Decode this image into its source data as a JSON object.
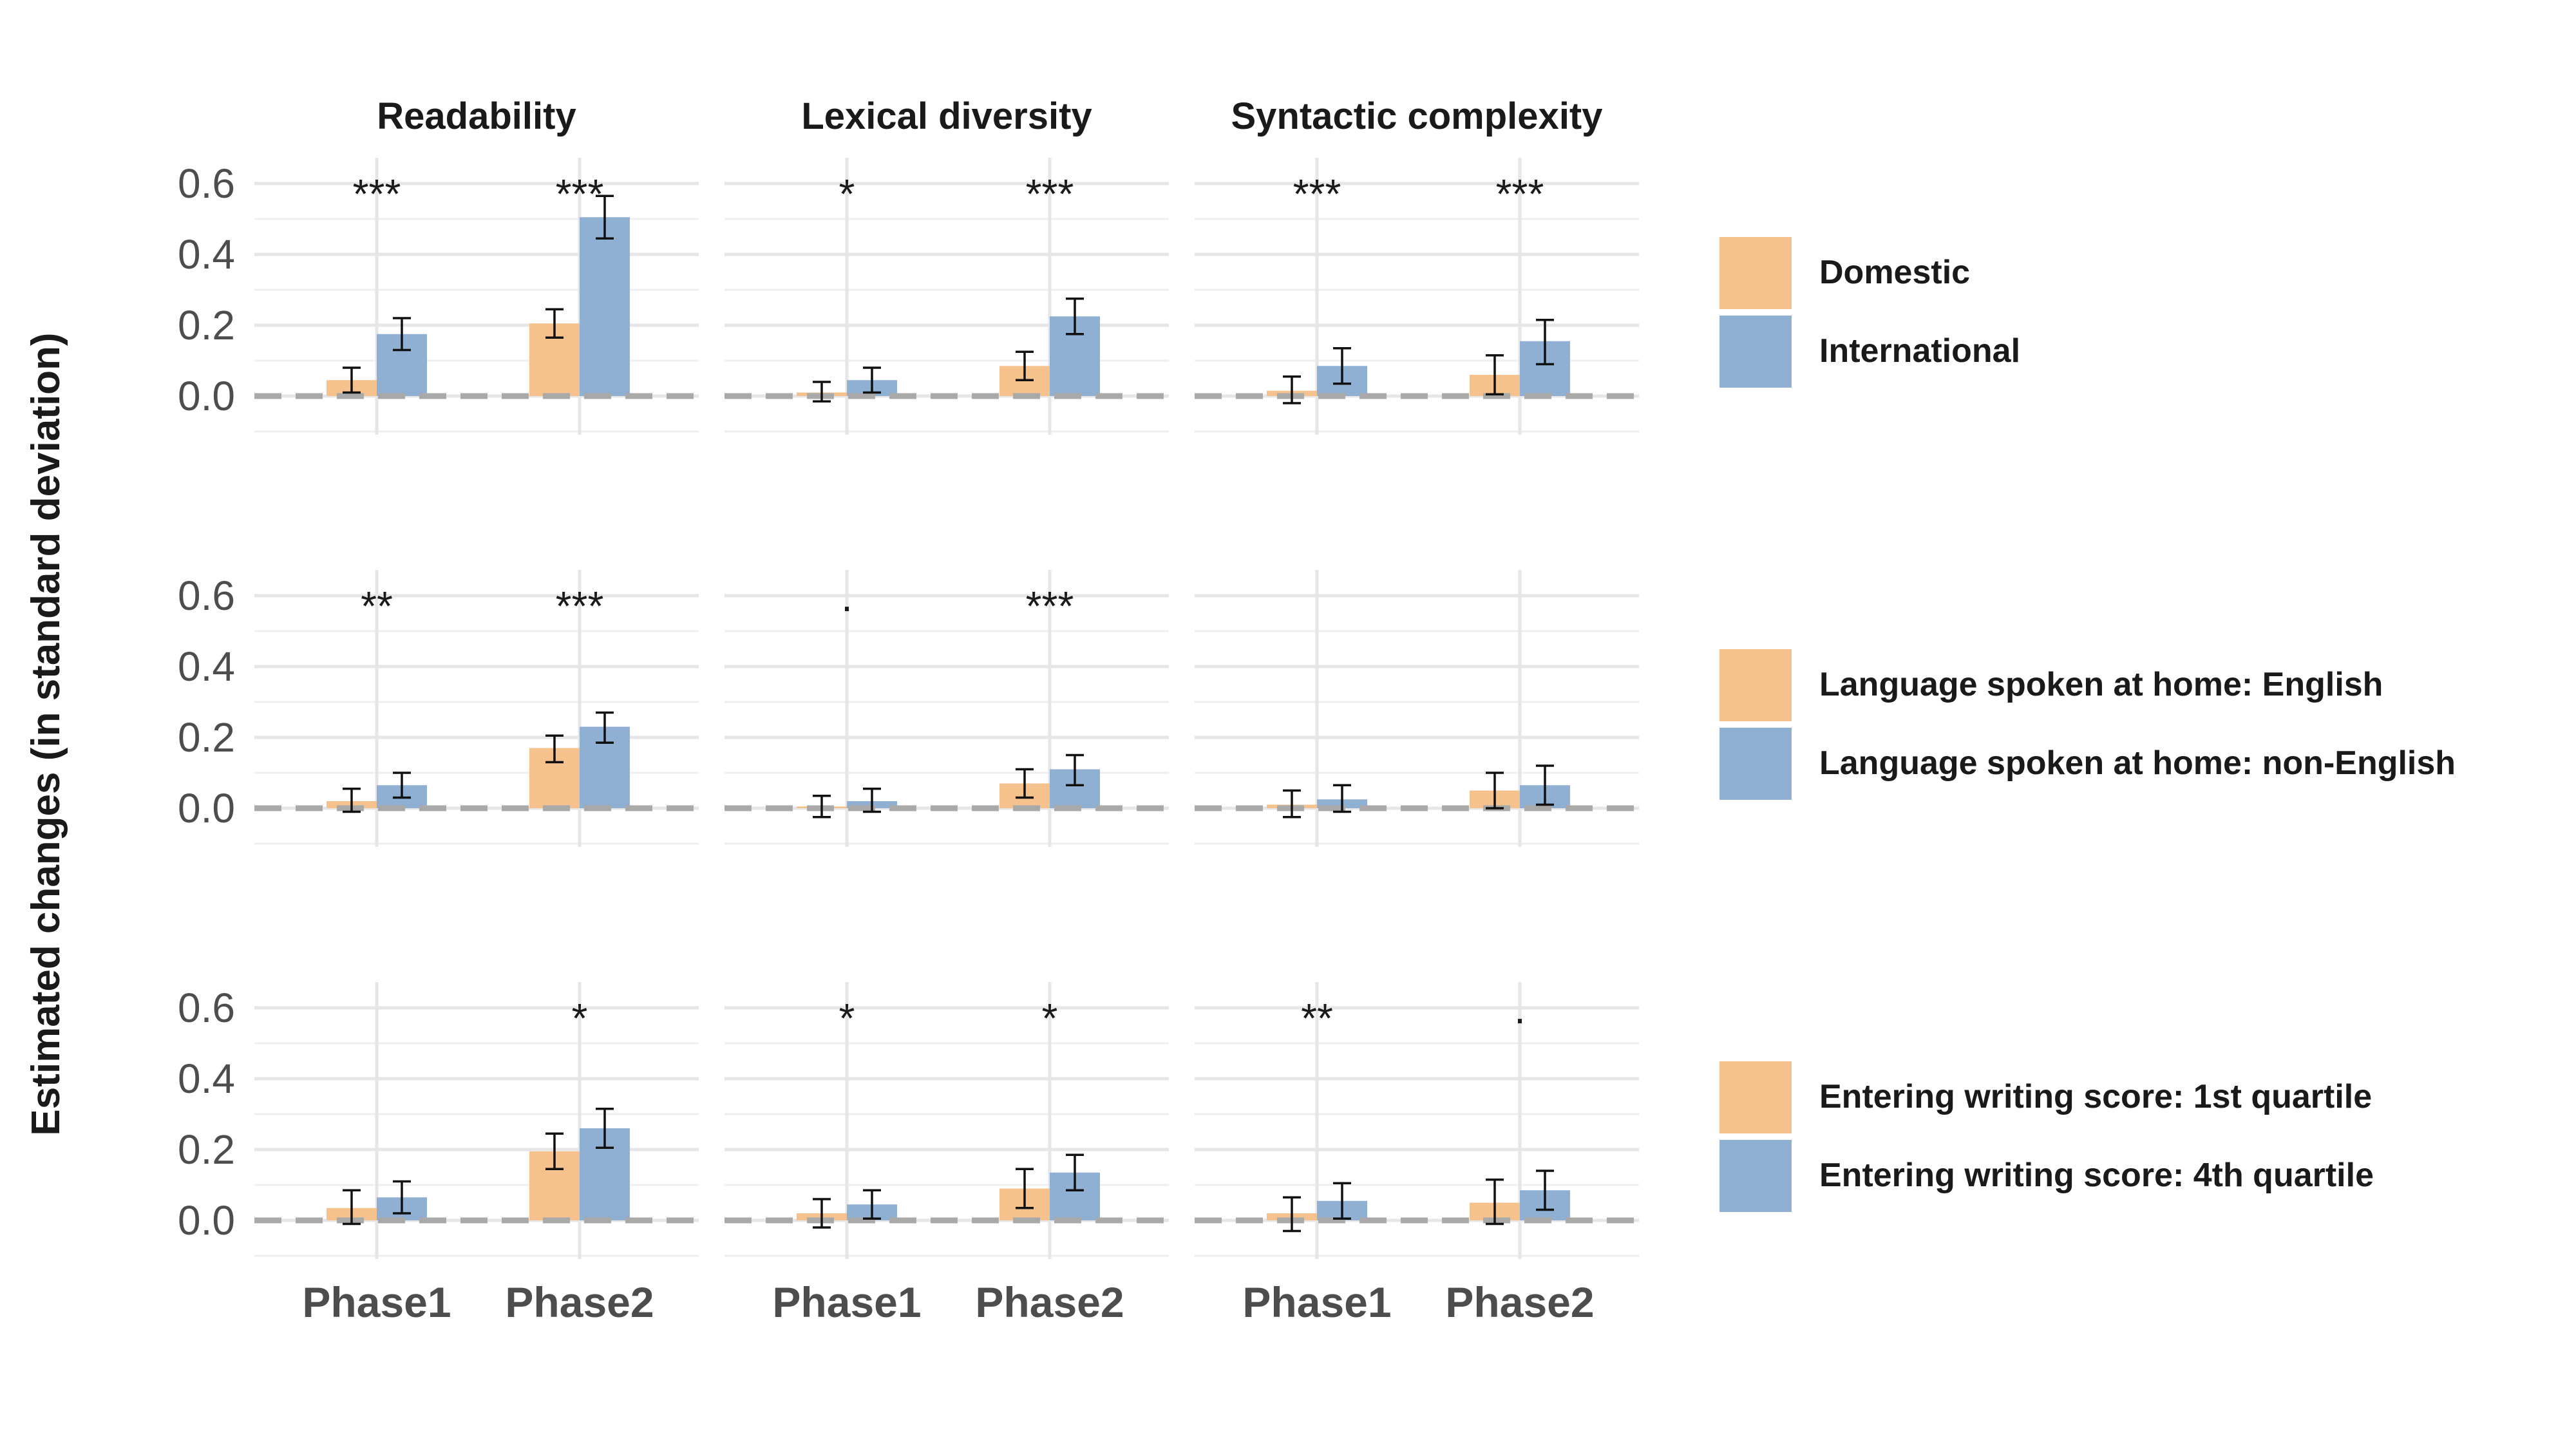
{
  "chart_data": {
    "type": "bar",
    "ylabel": "Estimated changes (in standard deviation)",
    "xlabel": "",
    "columns": [
      "Readability",
      "Lexical diversity",
      "Syntactic complexity"
    ],
    "categories": [
      "Phase1",
      "Phase2"
    ],
    "y_ticks": [
      "0.0",
      "0.2",
      "0.4",
      "0.6"
    ],
    "y_tick_values": [
      0,
      0.2,
      0.4,
      0.6
    ],
    "ylim": [
      -0.1,
      0.7
    ],
    "reference_line": 0,
    "rows": [
      {
        "series": [
          {
            "name": "Domestic",
            "color": "#F5C18D"
          },
          {
            "name": "International",
            "color": "#8FAFD3"
          }
        ],
        "panels": [
          {
            "values": [
              [
                0.045,
                0.175
              ],
              [
                0.205,
                0.505
              ]
            ],
            "err": [
              [
                [
                  0.01,
                  0.08
                ],
                [
                  0.13,
                  0.22
                ]
              ],
              [
                [
                  0.165,
                  0.245
                ],
                [
                  0.445,
                  0.565
                ]
              ]
            ],
            "sig": [
              "***",
              "***"
            ]
          },
          {
            "values": [
              [
                0.01,
                0.045
              ],
              [
                0.085,
                0.225
              ]
            ],
            "err": [
              [
                [
                  -0.015,
                  0.04
                ],
                [
                  0.01,
                  0.08
                ]
              ],
              [
                [
                  0.045,
                  0.125
                ],
                [
                  0.175,
                  0.275
                ]
              ]
            ],
            "sig": [
              "*",
              "***"
            ]
          },
          {
            "values": [
              [
                0.015,
                0.085
              ],
              [
                0.06,
                0.155
              ]
            ],
            "err": [
              [
                [
                  -0.02,
                  0.055
                ],
                [
                  0.035,
                  0.135
                ]
              ],
              [
                [
                  0.005,
                  0.115
                ],
                [
                  0.09,
                  0.215
                ]
              ]
            ],
            "sig": [
              "***",
              "***"
            ]
          }
        ]
      },
      {
        "series": [
          {
            "name": "Language spoken at home: English",
            "color": "#F5C18D"
          },
          {
            "name": "Language spoken at home: non-English",
            "color": "#8FAFD3"
          }
        ],
        "panels": [
          {
            "values": [
              [
                0.02,
                0.065
              ],
              [
                0.17,
                0.23
              ]
            ],
            "err": [
              [
                [
                  -0.01,
                  0.055
                ],
                [
                  0.03,
                  0.1
                ]
              ],
              [
                [
                  0.13,
                  0.205
                ],
                [
                  0.185,
                  0.27
                ]
              ]
            ],
            "sig": [
              "**",
              "***"
            ]
          },
          {
            "values": [
              [
                0.005,
                0.02
              ],
              [
                0.07,
                0.11
              ]
            ],
            "err": [
              [
                [
                  -0.025,
                  0.035
                ],
                [
                  -0.01,
                  0.055
                ]
              ],
              [
                [
                  0.03,
                  0.11
                ],
                [
                  0.065,
                  0.15
                ]
              ]
            ],
            "sig": [
              "·",
              "***"
            ]
          },
          {
            "values": [
              [
                0.01,
                0.025
              ],
              [
                0.05,
                0.065
              ]
            ],
            "err": [
              [
                [
                  -0.025,
                  0.05
                ],
                [
                  -0.01,
                  0.065
                ]
              ],
              [
                [
                  0.0,
                  0.1
                ],
                [
                  0.01,
                  0.12
                ]
              ]
            ],
            "sig": [
              "",
              ""
            ]
          }
        ]
      },
      {
        "series": [
          {
            "name": "Entering writing score: 1st quartile",
            "color": "#F5C18D"
          },
          {
            "name": "Entering writing score: 4th quartile",
            "color": "#8FAFD3"
          }
        ],
        "panels": [
          {
            "values": [
              [
                0.035,
                0.065
              ],
              [
                0.195,
                0.26
              ]
            ],
            "err": [
              [
                [
                  -0.01,
                  0.085
                ],
                [
                  0.02,
                  0.11
                ]
              ],
              [
                [
                  0.145,
                  0.245
                ],
                [
                  0.205,
                  0.315
                ]
              ]
            ],
            "sig": [
              "",
              "*"
            ]
          },
          {
            "values": [
              [
                0.02,
                0.045
              ],
              [
                0.09,
                0.135
              ]
            ],
            "err": [
              [
                [
                  -0.02,
                  0.06
                ],
                [
                  0.005,
                  0.085
                ]
              ],
              [
                [
                  0.035,
                  0.145
                ],
                [
                  0.085,
                  0.185
                ]
              ]
            ],
            "sig": [
              "*",
              "*"
            ]
          },
          {
            "values": [
              [
                0.02,
                0.055
              ],
              [
                0.05,
                0.085
              ]
            ],
            "err": [
              [
                [
                  -0.03,
                  0.065
                ],
                [
                  0.005,
                  0.105
                ]
              ],
              [
                [
                  -0.01,
                  0.115
                ],
                [
                  0.03,
                  0.14
                ]
              ]
            ],
            "sig": [
              "**",
              "·"
            ]
          }
        ]
      }
    ]
  }
}
